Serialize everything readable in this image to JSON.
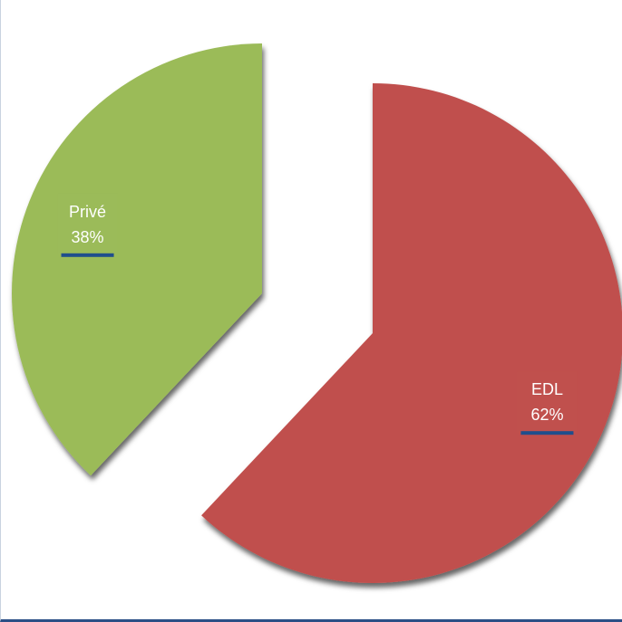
{
  "chart_data": {
    "type": "pie",
    "title": "",
    "exploded": true,
    "slices": [
      {
        "label": "EDL",
        "value": 62,
        "percent_label": "62%",
        "color": "#c0504d"
      },
      {
        "label": "Privé",
        "value": 38,
        "percent_label": "38%",
        "color": "#9bbb59"
      }
    ],
    "label_box_accent": "#1f4e8c"
  }
}
